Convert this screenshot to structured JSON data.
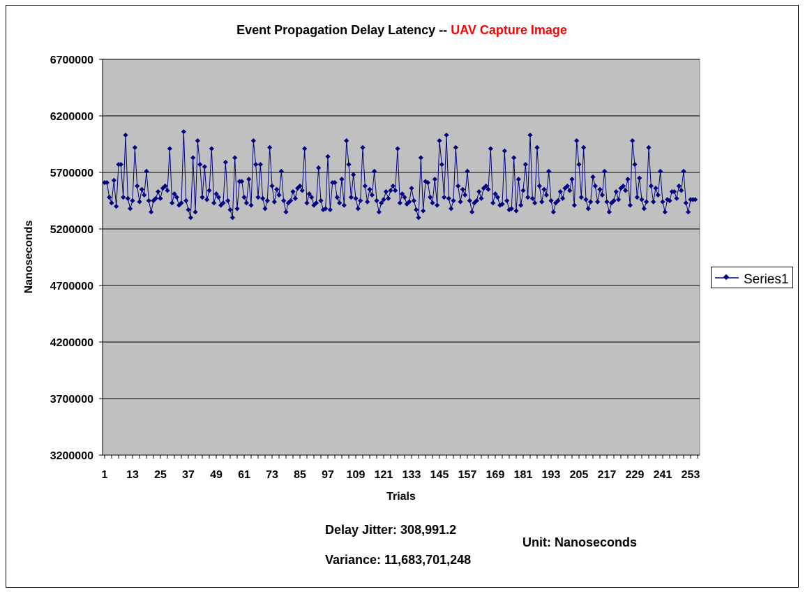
{
  "chart_data": {
    "type": "line",
    "title": "Event Propagation Delay Latency -- ",
    "title_highlight": "UAV Capture Image",
    "xlabel": "Trials",
    "ylabel": "Nanoseconds",
    "ylim": [
      3200000,
      6700000
    ],
    "y_ticks": [
      "3200000",
      "3700000",
      "4200000",
      "4700000",
      "5200000",
      "5700000",
      "6200000",
      "6700000"
    ],
    "y_tick_values": [
      3200000,
      3700000,
      4200000,
      4700000,
      5200000,
      5700000,
      6200000,
      6700000
    ],
    "x_ticks": [
      "1",
      "13",
      "25",
      "37",
      "49",
      "61",
      "73",
      "85",
      "97",
      "109",
      "121",
      "133",
      "145",
      "157",
      "169",
      "181",
      "193",
      "205",
      "217",
      "229",
      "241",
      "253"
    ],
    "x_tick_values": [
      1,
      13,
      25,
      37,
      49,
      61,
      73,
      85,
      97,
      109,
      121,
      133,
      145,
      157,
      169,
      181,
      193,
      205,
      217,
      229,
      241,
      253
    ],
    "x_range": [
      1,
      256
    ],
    "grid": "horizontal",
    "plot_background": "#c0c0c0",
    "series_color": "#000080",
    "title_highlight_color": "#ff0000",
    "legend_position": "right",
    "series": [
      {
        "name": "Series1",
        "values": [
          5610000,
          5610000,
          5480000,
          5430000,
          5630000,
          5400000,
          5770000,
          5770000,
          5480000,
          6030000,
          5470000,
          5380000,
          5450000,
          5920000,
          5580000,
          5440000,
          5550000,
          5500000,
          5710000,
          5450000,
          5350000,
          5450000,
          5470000,
          5530000,
          5470000,
          5560000,
          5580000,
          5540000,
          5910000,
          5430000,
          5510000,
          5480000,
          5410000,
          5430000,
          6060000,
          5450000,
          5370000,
          5300000,
          5830000,
          5350000,
          5980000,
          5770000,
          5480000,
          5750000,
          5460000,
          5540000,
          5910000,
          5430000,
          5510000,
          5480000,
          5410000,
          5430000,
          5790000,
          5450000,
          5370000,
          5300000,
          5830000,
          5380000,
          5620000,
          5620000,
          5480000,
          5430000,
          5640000,
          5410000,
          5980000,
          5770000,
          5480000,
          5770000,
          5470000,
          5380000,
          5450000,
          5920000,
          5580000,
          5440000,
          5550000,
          5500000,
          5710000,
          5450000,
          5350000,
          5430000,
          5450000,
          5530000,
          5470000,
          5560000,
          5580000,
          5540000,
          5910000,
          5430000,
          5510000,
          5480000,
          5410000,
          5430000,
          5740000,
          5450000,
          5370000,
          5380000,
          5840000,
          5370000,
          5610000,
          5610000,
          5480000,
          5430000,
          5640000,
          5410000,
          5980000,
          5770000,
          5480000,
          5680000,
          5470000,
          5380000,
          5450000,
          5920000,
          5580000,
          5440000,
          5550000,
          5500000,
          5710000,
          5450000,
          5350000,
          5430000,
          5460000,
          5530000,
          5470000,
          5540000,
          5580000,
          5540000,
          5910000,
          5430000,
          5510000,
          5480000,
          5420000,
          5440000,
          5560000,
          5450000,
          5370000,
          5300000,
          5830000,
          5360000,
          5620000,
          5610000,
          5480000,
          5430000,
          5640000,
          5410000,
          5980000,
          5770000,
          5480000,
          6030000,
          5470000,
          5380000,
          5450000,
          5920000,
          5580000,
          5440000,
          5550000,
          5500000,
          5710000,
          5450000,
          5350000,
          5430000,
          5450000,
          5530000,
          5470000,
          5560000,
          5580000,
          5550000,
          5910000,
          5430000,
          5510000,
          5480000,
          5410000,
          5420000,
          5890000,
          5450000,
          5370000,
          5380000,
          5830000,
          5360000,
          5640000,
          5410000,
          5540000,
          5770000,
          5480000,
          6030000,
          5470000,
          5430000,
          5920000,
          5580000,
          5440000,
          5550000,
          5500000,
          5710000,
          5450000,
          5350000,
          5430000,
          5450000,
          5530000,
          5470000,
          5560000,
          5580000,
          5540000,
          5640000,
          5410000,
          5980000,
          5770000,
          5480000,
          5920000,
          5460000,
          5380000,
          5440000,
          5660000,
          5580000,
          5440000,
          5550000,
          5500000,
          5710000,
          5440000,
          5350000,
          5430000,
          5450000,
          5530000,
          5460000,
          5560000,
          5580000,
          5540000,
          5640000,
          5410000,
          5980000,
          5770000,
          5480000,
          5650000,
          5460000,
          5380000,
          5440000,
          5920000,
          5580000,
          5440000,
          5560000,
          5500000,
          5710000,
          5440000,
          5350000,
          5460000,
          5450000,
          5530000,
          5530000,
          5470000,
          5580000,
          5540000,
          5710000,
          5430000,
          5350000,
          5460000,
          5460000,
          5460000
        ]
      }
    ]
  },
  "legend": {
    "label": "Series1"
  },
  "annotations": {
    "jitter": "Delay Jitter: 308,991.2",
    "variance": "Variance: 11,683,701,248",
    "unit": "Unit: Nanoseconds"
  }
}
